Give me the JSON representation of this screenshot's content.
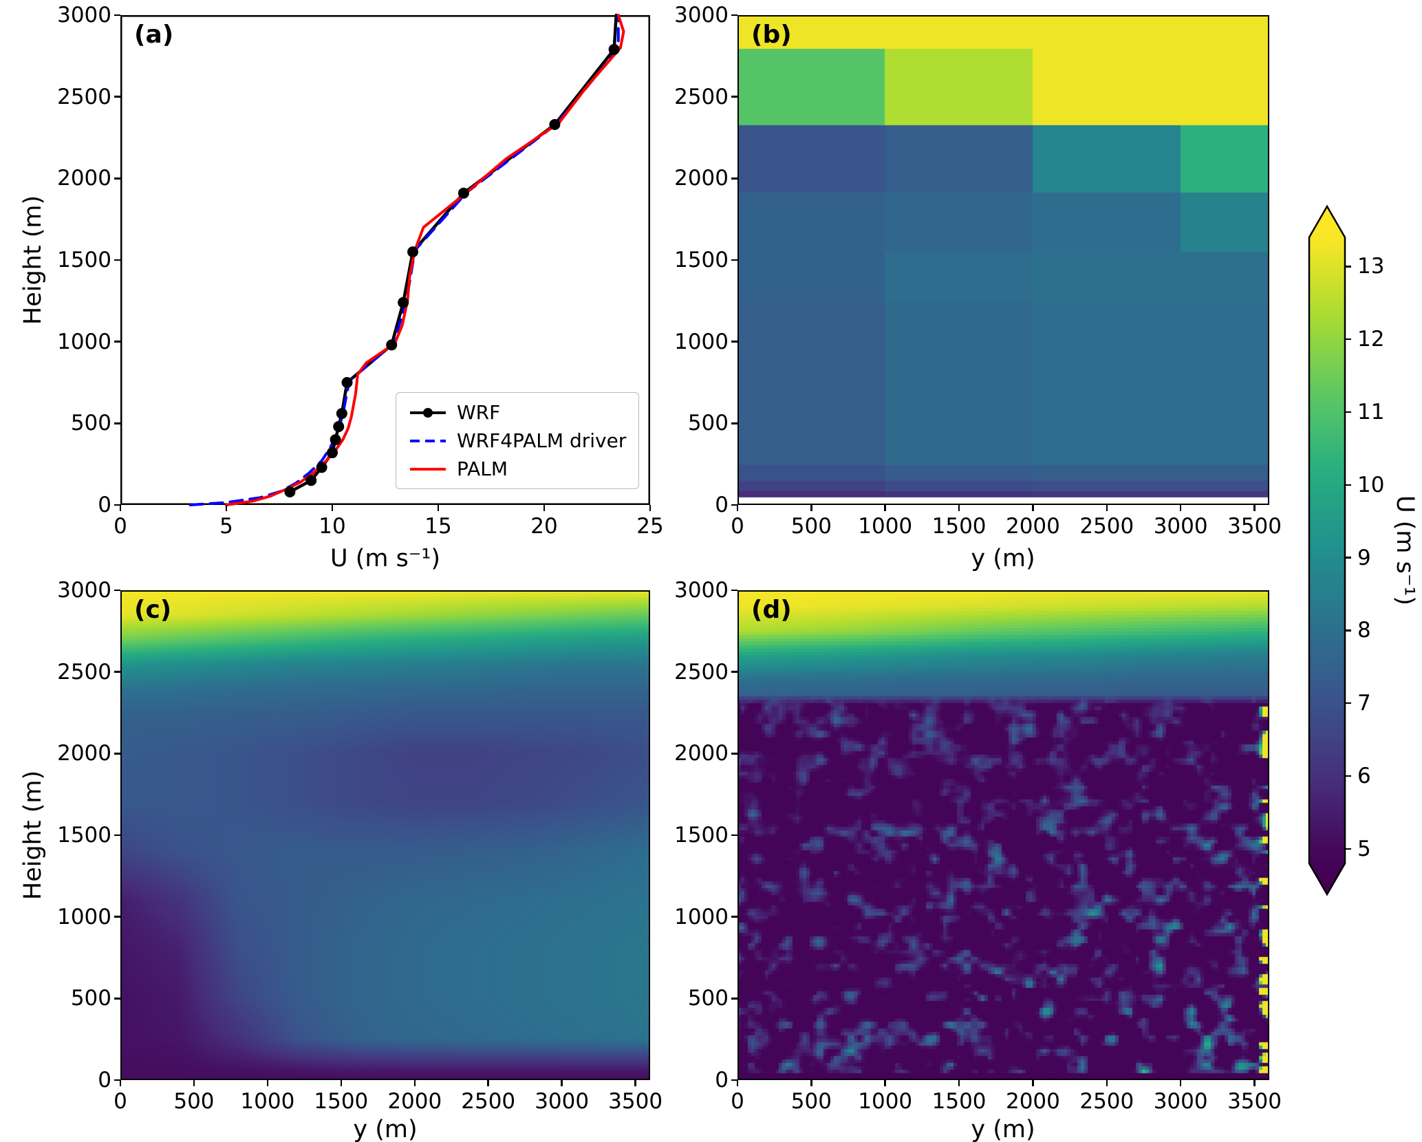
{
  "colormap": {
    "name": "viridis",
    "vmin": 4.8,
    "vmax": 13.4,
    "stops": [
      {
        "t": 0.0,
        "c": "#440154"
      },
      {
        "t": 0.125,
        "c": "#472c7a"
      },
      {
        "t": 0.25,
        "c": "#3b518b"
      },
      {
        "t": 0.375,
        "c": "#2c718e"
      },
      {
        "t": 0.5,
        "c": "#21908d"
      },
      {
        "t": 0.625,
        "c": "#27ad81"
      },
      {
        "t": 0.75,
        "c": "#5cc863"
      },
      {
        "t": 0.875,
        "c": "#aadc32"
      },
      {
        "t": 1.0,
        "c": "#fde725"
      }
    ]
  },
  "colorbar": {
    "label": "U (m s⁻¹)",
    "ticks": [
      5,
      6,
      7,
      8,
      9,
      10,
      11,
      12,
      13
    ],
    "extend": "both"
  },
  "chart_data": [
    {
      "id": "a",
      "type": "line",
      "title": "(a)",
      "xlabel": "U (m s⁻¹)",
      "ylabel": "Height (m)",
      "xlim": [
        0,
        25
      ],
      "ylim": [
        0,
        3000
      ],
      "xticks": [
        0,
        5,
        10,
        15,
        20,
        25
      ],
      "yticks": [
        0,
        500,
        1000,
        1500,
        2000,
        2500,
        3000
      ],
      "legend_position": "center-right",
      "series": [
        {
          "name": "WRF",
          "color": "#000000",
          "style": "solid",
          "marker": "circle",
          "U": [
            8.0,
            9.0,
            9.5,
            10.0,
            10.15,
            10.3,
            10.45,
            10.7,
            12.8,
            13.35,
            13.8,
            16.2,
            20.5,
            23.3,
            23.4
          ],
          "height": [
            80,
            150,
            230,
            320,
            400,
            480,
            560,
            750,
            980,
            1240,
            1550,
            1910,
            2330,
            2790,
            3000
          ]
        },
        {
          "name": "WRF4PALM driver",
          "color": "#0000ff",
          "style": "dashed",
          "marker": "none",
          "U": [
            3.3,
            5.0,
            6.6,
            7.6,
            8.3,
            8.9,
            9.5,
            9.9,
            10.2,
            10.4,
            10.55,
            10.8,
            12.9,
            13.5,
            13.9,
            16.35,
            20.6,
            23.5,
            23.5
          ],
          "height": [
            0,
            15,
            45,
            85,
            135,
            195,
            270,
            350,
            430,
            510,
            590,
            760,
            990,
            1250,
            1560,
            1915,
            2335,
            2795,
            3000
          ]
        },
        {
          "name": "PALM",
          "color": "#ff0000",
          "style": "solid",
          "marker": "none",
          "U": [
            5.0,
            6.3,
            7.1,
            7.8,
            8.5,
            9.1,
            9.6,
            10.1,
            10.5,
            10.75,
            10.9,
            11.0,
            11.1,
            11.15,
            11.2,
            11.6,
            12.95,
            13.3,
            13.55,
            13.65,
            13.9,
            14.3,
            16.4,
            18.2,
            20.7,
            22.0,
            23.6,
            23.75,
            23.5
          ],
          "height": [
            0,
            25,
            55,
            95,
            140,
            195,
            255,
            325,
            400,
            470,
            540,
            610,
            680,
            740,
            800,
            870,
            990,
            1100,
            1250,
            1400,
            1560,
            1700,
            1920,
            2120,
            2340,
            2560,
            2800,
            2900,
            3000
          ]
        }
      ]
    },
    {
      "id": "b",
      "type": "heatmap-blocks",
      "title": "(b)",
      "xlabel": "y (m)",
      "ylabel": "",
      "xlim": [
        0,
        3600
      ],
      "ylim": [
        0,
        3000
      ],
      "xticks": [
        0,
        500,
        1000,
        1500,
        2000,
        2500,
        3000,
        3500
      ],
      "yticks": [
        0,
        500,
        1000,
        1500,
        2000,
        2500,
        3000
      ],
      "grid": {
        "x_edges": [
          0,
          1000,
          2000,
          3000,
          3600
        ],
        "h_edges": [
          50,
          90,
          150,
          250,
          1250,
          1550,
          1920,
          2330,
          2800,
          3000
        ],
        "values": [
          [
            5.9,
            6.1,
            6.2,
            6.2
          ],
          [
            6.5,
            6.8,
            6.9,
            6.9
          ],
          [
            7.0,
            7.3,
            7.4,
            7.4
          ],
          [
            7.4,
            7.8,
            7.9,
            7.9
          ],
          [
            7.5,
            7.9,
            8.0,
            8.0
          ],
          [
            7.5,
            7.7,
            7.9,
            8.6
          ],
          [
            7.1,
            7.4,
            8.7,
            10.3
          ],
          [
            11.1,
            12.4,
            13.2,
            13.2
          ],
          [
            13.2,
            13.2,
            13.2,
            13.2
          ]
        ],
        "below_lowest_edge": "white"
      }
    },
    {
      "id": "c",
      "type": "heatmap-smooth",
      "title": "(c)",
      "xlabel": "y (m)",
      "ylabel": "Height (m)",
      "xlim": [
        0,
        3600
      ],
      "ylim": [
        0,
        3000
      ],
      "xticks": [
        0,
        500,
        1000,
        1500,
        2000,
        2500,
        3000,
        3500
      ],
      "yticks": [
        0,
        500,
        1000,
        1500,
        2000,
        2500,
        3000
      ],
      "grid": {
        "x": [
          0,
          400,
          800,
          1200,
          1600,
          2000,
          2400,
          2800,
          3200,
          3600
        ],
        "h": [
          0,
          60,
          250,
          500,
          800,
          1100,
          1400,
          1700,
          2000,
          2250,
          2400,
          2550,
          2700,
          2850,
          3000
        ],
        "values": [
          [
            5.1,
            5.1,
            5.1,
            5.1,
            5.1,
            5.1,
            5.1,
            5.1,
            5.1,
            5.1
          ],
          [
            5.1,
            5.1,
            5.2,
            5.3,
            5.4,
            5.4,
            5.4,
            5.4,
            5.4,
            5.4
          ],
          [
            5.2,
            5.3,
            6.0,
            7.0,
            7.5,
            7.7,
            7.8,
            7.9,
            8.0,
            8.1
          ],
          [
            5.2,
            5.4,
            6.6,
            7.3,
            7.6,
            7.8,
            7.9,
            8.0,
            8.1,
            8.2
          ],
          [
            5.3,
            5.6,
            6.9,
            7.3,
            7.6,
            7.8,
            7.9,
            8.0,
            8.1,
            8.2
          ],
          [
            5.5,
            6.1,
            7.1,
            7.3,
            7.5,
            7.7,
            7.8,
            7.9,
            8.0,
            8.1
          ],
          [
            6.6,
            7.0,
            7.2,
            7.3,
            7.3,
            7.3,
            7.4,
            7.5,
            7.7,
            7.9
          ],
          [
            7.2,
            7.2,
            7.1,
            6.9,
            6.7,
            6.6,
            6.6,
            6.7,
            6.9,
            7.1
          ],
          [
            7.3,
            7.2,
            7.1,
            6.9,
            6.7,
            6.5,
            6.5,
            6.6,
            6.7,
            6.9
          ],
          [
            7.5,
            7.5,
            7.4,
            7.4,
            7.3,
            7.2,
            7.2,
            7.2,
            7.2,
            7.2
          ],
          [
            8.1,
            8.0,
            7.9,
            7.8,
            7.8,
            7.7,
            7.7,
            7.6,
            7.6,
            7.6
          ],
          [
            9.3,
            9.1,
            8.9,
            8.7,
            8.6,
            8.5,
            8.4,
            8.3,
            8.2,
            8.2
          ],
          [
            11.6,
            11.3,
            11.0,
            10.7,
            10.4,
            10.2,
            10.0,
            9.8,
            9.6,
            9.5
          ],
          [
            13.1,
            13.0,
            12.8,
            12.6,
            12.4,
            12.2,
            12.0,
            11.8,
            11.6,
            11.4
          ],
          [
            13.3,
            13.3,
            13.3,
            13.3,
            13.3,
            13.3,
            13.2,
            13.2,
            13.2,
            13.2
          ]
        ]
      }
    },
    {
      "id": "d",
      "type": "heatmap-turbulent",
      "title": "(d)",
      "xlabel": "y (m)",
      "ylabel": "",
      "xlim": [
        0,
        3600
      ],
      "ylim": [
        0,
        3000
      ],
      "xticks": [
        0,
        500,
        1000,
        1500,
        2000,
        2500,
        3000,
        3500
      ],
      "yticks": [
        0,
        500,
        1000,
        1500,
        2000,
        2500,
        3000
      ],
      "smooth_top": {
        "x": [
          0,
          400,
          800,
          1200,
          1600,
          2000,
          2400,
          2800,
          3200,
          3600
        ],
        "h": [
          2330,
          2450,
          2600,
          2750,
          2900,
          3000
        ],
        "values": [
          [
            7.4,
            7.4,
            7.4,
            7.3,
            7.3,
            7.2,
            7.2,
            7.2,
            7.2,
            7.2
          ],
          [
            8.0,
            7.9,
            7.9,
            7.8,
            7.8,
            7.7,
            7.7,
            7.6,
            7.6,
            7.6
          ],
          [
            9.8,
            9.6,
            9.4,
            9.2,
            9.0,
            8.9,
            8.8,
            8.6,
            8.5,
            8.4
          ],
          [
            12.4,
            12.2,
            12.0,
            11.7,
            11.4,
            11.2,
            11.0,
            10.8,
            10.6,
            10.4
          ],
          [
            13.2,
            13.2,
            13.1,
            13.0,
            12.9,
            12.8,
            12.7,
            12.6,
            12.5,
            12.4
          ],
          [
            13.3,
            13.3,
            13.3,
            13.3,
            13.3,
            13.2,
            13.2,
            13.2,
            13.2,
            13.2
          ]
        ]
      },
      "turbulence": {
        "seed": 20417,
        "background": 4.88,
        "threshold": 0.52,
        "gain_min": 2.6,
        "gain_max": 7.4,
        "length_scale_y_m": 110,
        "length_scale_h_m": 85,
        "transition_h": 2330
      }
    }
  ]
}
